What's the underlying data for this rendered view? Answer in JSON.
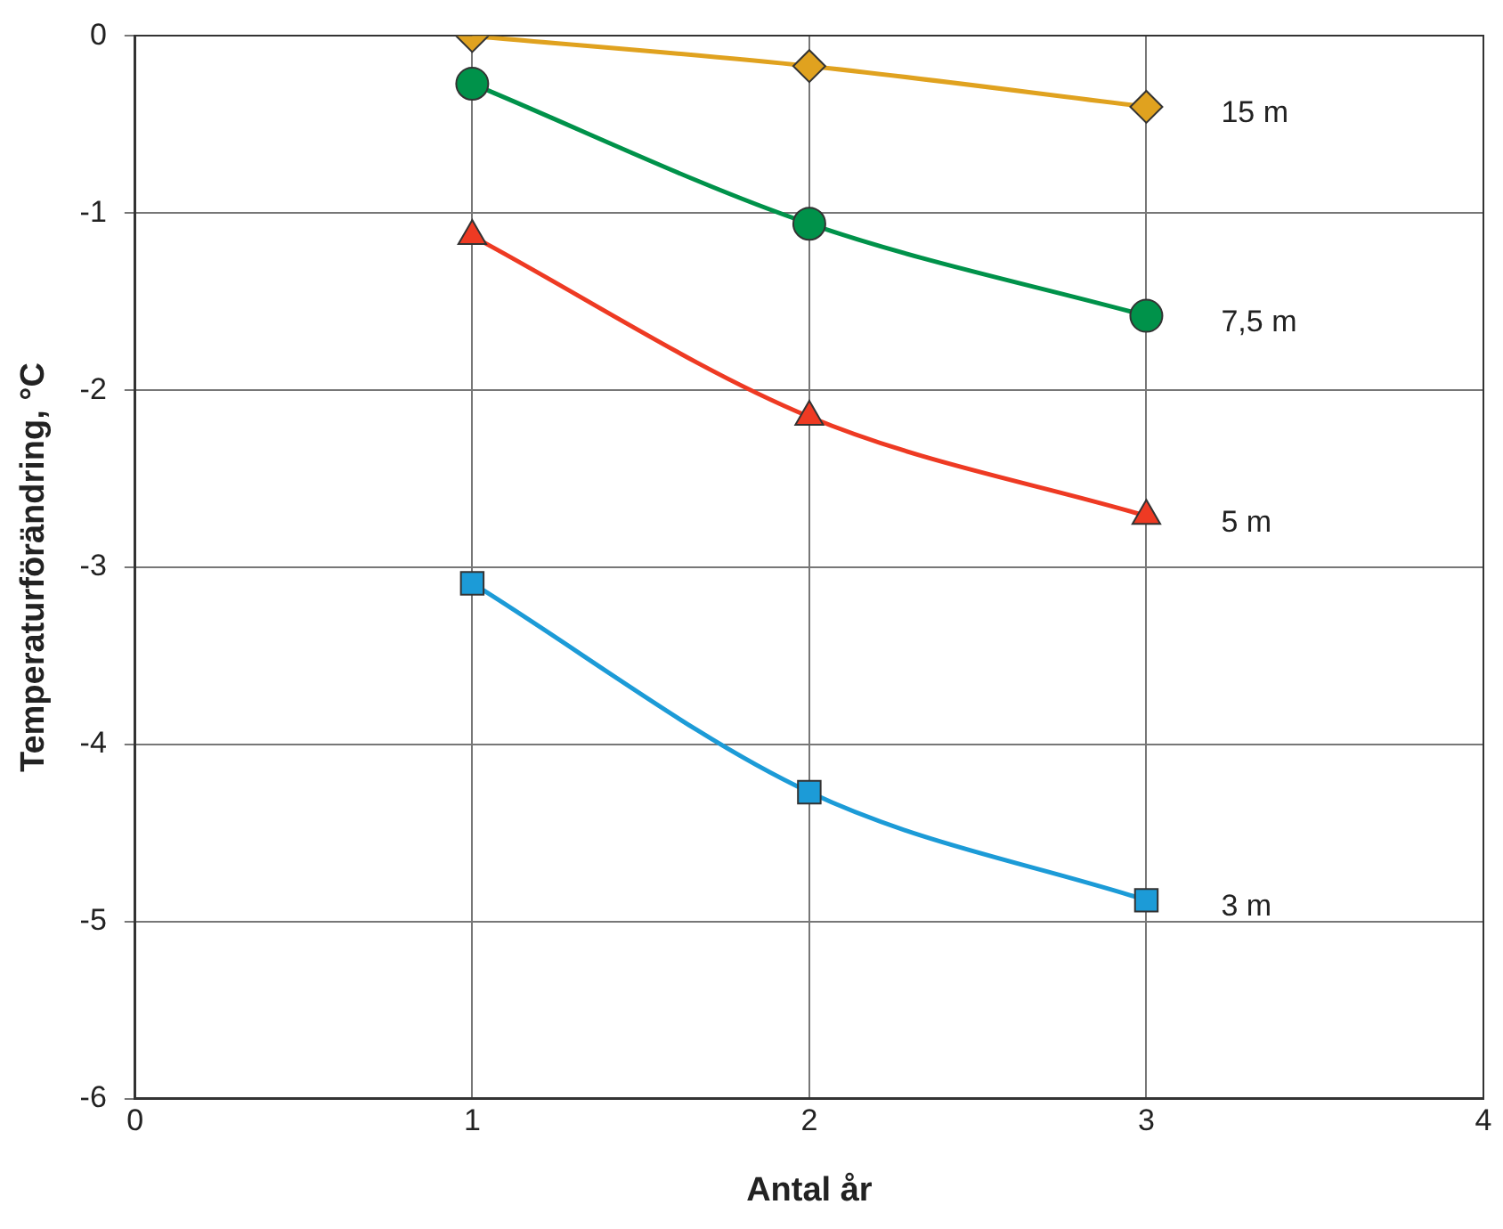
{
  "chart_data": {
    "type": "line",
    "xlabel": "Antal år",
    "ylabel": "Temperaturförändring, °C",
    "x": [
      1,
      2,
      3
    ],
    "series": [
      {
        "name": "15 m",
        "color": "#e0a21f",
        "marker": "diamond",
        "values": [
          0,
          -0.17,
          -0.4
        ]
      },
      {
        "name": "7,5 m",
        "color": "#00924a",
        "marker": "circle",
        "values": [
          -0.27,
          -1.06,
          -1.58
        ]
      },
      {
        "name": "5 m",
        "color": "#ee3a23",
        "marker": "triangle",
        "values": [
          -1.13,
          -2.15,
          -2.71
        ]
      },
      {
        "name": "3 m",
        "color": "#1c9bd7",
        "marker": "square",
        "values": [
          -3.09,
          -4.27,
          -4.88
        ]
      }
    ],
    "xlim": [
      0,
      4
    ],
    "xticks": [
      0,
      1,
      2,
      3,
      4
    ],
    "ylim": [
      -6,
      0
    ],
    "yticks": [
      0,
      -1,
      -2,
      -3,
      -4,
      -5,
      -6
    ],
    "grid": true,
    "legend": false
  }
}
